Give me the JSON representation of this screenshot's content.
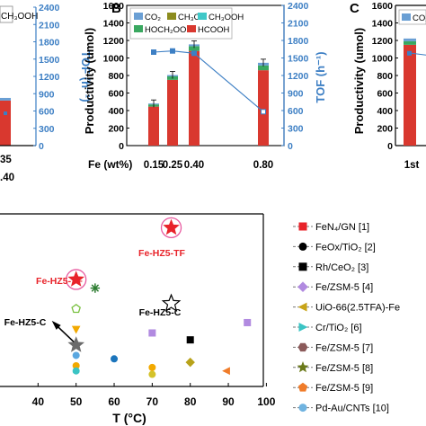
{
  "chart_data": [
    {
      "panel_label": "",
      "type": "bar",
      "visible_texts": [
        "CH₃OOH"
      ],
      "y2label": "TOF (h⁻¹)",
      "y2ticks": [
        0,
        300,
        600,
        900,
        1200,
        1500,
        1800,
        2100,
        2400
      ],
      "tick_fragments": [
        "35",
        ".40"
      ],
      "bar_value": 520,
      "tof_value": 560
    },
    {
      "panel_label": "B",
      "type": "bar",
      "xlabel": "Fe (wt%)",
      "ylabel": "Productivity (umol)",
      "y2label": "TOF (h⁻¹)",
      "ylim": [
        0,
        1600
      ],
      "y2lim": [
        0,
        2400
      ],
      "yticks": [
        0,
        200,
        400,
        600,
        800,
        1000,
        1200,
        1400,
        1600
      ],
      "y2ticks": [
        0,
        300,
        600,
        900,
        1200,
        1500,
        1800,
        2100,
        2400
      ],
      "categories": [
        "0.15",
        "0.25",
        "0.40",
        "0.80"
      ],
      "legend": [
        "CO₂",
        "CH₃OH",
        "CH₃OOH",
        "HOCH₂OOH",
        "HCOOH"
      ],
      "series": [
        {
          "name": "HCOOH",
          "values": [
            445,
            750,
            1080,
            860
          ]
        },
        {
          "name": "HOCH₂OOH",
          "values": [
            25,
            40,
            55,
            55
          ]
        },
        {
          "name": "CH₃OOH",
          "values": [
            0,
            0,
            0,
            0
          ]
        },
        {
          "name": "CH₃OH",
          "values": [
            0,
            0,
            0,
            0
          ]
        },
        {
          "name": "CO₂",
          "values": [
            10,
            15,
            20,
            30
          ]
        }
      ],
      "tof_values": [
        1600,
        1620,
        1580,
        580
      ]
    },
    {
      "panel_label": "C",
      "type": "bar",
      "ylabel": "Productivity (umol)",
      "ylim": [
        0,
        1600
      ],
      "yticks": [
        0,
        200,
        400,
        600,
        800,
        1000,
        1200,
        1400,
        1600
      ],
      "legend": [
        "CO₂"
      ],
      "categories": [
        "1st"
      ],
      "values": [
        1150
      ],
      "tof_value": 1580
    },
    {
      "panel_label": "",
      "type": "scatter",
      "xlabel": "T (°C)",
      "xlim": [
        30,
        100
      ],
      "xticks": [
        40,
        50,
        60,
        70,
        80,
        90,
        100
      ],
      "annotations": [
        {
          "text": "Fe-HZ5-TF",
          "x": 75,
          "color": "#e8232a"
        },
        {
          "text": "Fe-HZ5-TF",
          "x": 50,
          "color": "#e8232a"
        },
        {
          "text": "Fe-HZ5-C",
          "x": 75,
          "color": "#000000"
        },
        {
          "text": "Fe-HZ5-C",
          "x": 50,
          "color": "#000000"
        }
      ],
      "points": [
        {
          "x": 75,
          "y": 0.92,
          "shape": "star",
          "color": "#e8232a",
          "label": "Fe-HZ5-TF"
        },
        {
          "x": 50,
          "y": 0.62,
          "shape": "star",
          "color": "#e8232a",
          "label": "Fe-HZ5-TF"
        },
        {
          "x": 75,
          "y": 0.48,
          "shape": "star-open",
          "color": "#000000",
          "label": "Fe-HZ5-C"
        },
        {
          "x": 50,
          "y": 0.24,
          "shape": "star",
          "color": "#6a6a6a",
          "label": "Fe-HZ5-C"
        },
        {
          "x": 55,
          "y": 0.57,
          "shape": "asterisk",
          "color": "#2e7d32"
        },
        {
          "x": 50,
          "y": 0.45,
          "shape": "pentagon-open",
          "color": "#7bc142"
        },
        {
          "x": 50,
          "y": 0.33,
          "shape": "triangle-down",
          "color": "#f2a900"
        },
        {
          "x": 50,
          "y": 0.18,
          "shape": "circle",
          "color": "#5aa7e0"
        },
        {
          "x": 50,
          "y": 0.12,
          "shape": "circle",
          "color": "#f2a900"
        },
        {
          "x": 50,
          "y": 0.09,
          "shape": "circle",
          "color": "#3bc4c4"
        },
        {
          "x": 60,
          "y": 0.16,
          "shape": "circle",
          "color": "#1b75bc"
        },
        {
          "x": 70,
          "y": 0.31,
          "shape": "square",
          "color": "#b18ae0"
        },
        {
          "x": 70,
          "y": 0.11,
          "shape": "circle",
          "color": "#f2a900"
        },
        {
          "x": 70,
          "y": 0.07,
          "shape": "circle",
          "color": "#d4c22a"
        },
        {
          "x": 80,
          "y": 0.27,
          "shape": "square",
          "color": "#000000"
        },
        {
          "x": 80,
          "y": 0.14,
          "shape": "diamond",
          "color": "#b8a21a"
        },
        {
          "x": 89.5,
          "y": 0.09,
          "shape": "triangle-left",
          "color": "#f07c2a"
        },
        {
          "x": 95,
          "y": 0.37,
          "shape": "square",
          "color": "#b18ae0"
        }
      ],
      "legend": [
        {
          "label": "FeN₄/GN [1]",
          "shape": "square",
          "color": "#e8232a"
        },
        {
          "label": "FeOx/TiO₂ [2]",
          "shape": "circle",
          "color": "#000000"
        },
        {
          "label": "Rh/CeO₂ [3]",
          "shape": "square",
          "color": "#000000"
        },
        {
          "label": "Fe/ZSM-5 [4]",
          "shape": "diamond",
          "color": "#b18ae0"
        },
        {
          "label": "UiO-66(2.5TFA)-Fe",
          "shape": "triangle-left",
          "color": "#c8a418"
        },
        {
          "label": "Cr/TiO₂ [6]",
          "shape": "triangle-right",
          "color": "#3bc4c4"
        },
        {
          "label": "Fe/ZSM-5 [7]",
          "shape": "hexagon",
          "color": "#8b5a5a"
        },
        {
          "label": "Fe/ZSM-5 [8]",
          "shape": "star",
          "color": "#6b7a1a"
        },
        {
          "label": "Fe/ZSM-5 [9]",
          "shape": "pentagon",
          "color": "#f07c2a"
        },
        {
          "label": "Pd-Au/CNTs [10]",
          "shape": "circle",
          "color": "#6fb3e0"
        }
      ]
    }
  ],
  "colors": {
    "co2": "#6a9fd4",
    "ch3oh": "#8c8c1e",
    "ch3ooh": "#40c8c8",
    "hoch2ooh": "#3aa860",
    "hcooh": "#d9382f",
    "tof": "#3d7fc4",
    "axis_blue": "#3d7fc4"
  }
}
